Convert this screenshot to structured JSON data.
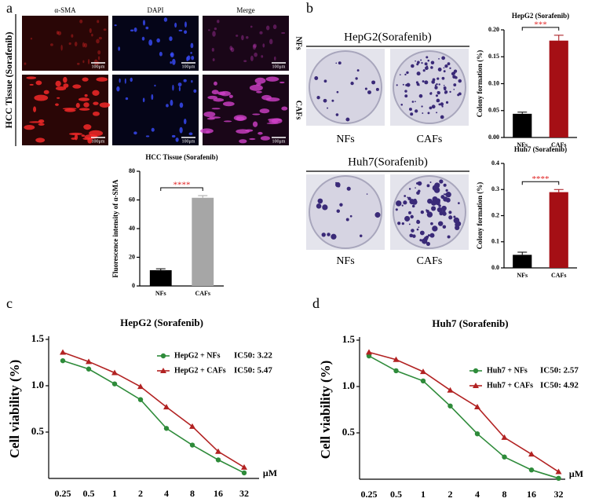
{
  "panel_labels": [
    "a",
    "b",
    "c",
    "d"
  ],
  "panel_a": {
    "row_group": "HCC Tissue (Sorafenib)",
    "columns": [
      "α-SMA",
      "DAPI",
      "Merge"
    ],
    "rows": [
      "NFs",
      "CAFs"
    ],
    "scale_bar": "100μm"
  },
  "panel_b": {
    "groups": [
      {
        "title": "HepG2(Sorafenib)",
        "labels": [
          "NFs",
          "CAFs"
        ]
      },
      {
        "title": "Huh7(Sorafenib)",
        "labels": [
          "NFs",
          "CAFs"
        ]
      }
    ]
  },
  "chart_data": [
    {
      "type": "bar",
      "title": "HCC Tissue (Sorafenib)",
      "ylabel": "Fluorescence intensity of α-SMA",
      "categories": [
        "NFs",
        "CAFs"
      ],
      "values": [
        11,
        61.5
      ],
      "errors": [
        1,
        1.5
      ],
      "colors": [
        "#000000",
        "#a6a6a6"
      ],
      "ylim": [
        0,
        80
      ],
      "yticks": [
        0,
        20,
        40,
        60,
        80
      ],
      "significance": "****"
    },
    {
      "type": "bar",
      "title": "HepG2 (Sorafenib)",
      "ylabel": "Colony formation (%)",
      "categories": [
        "NFs",
        "CAFs"
      ],
      "values": [
        0.044,
        0.18
      ],
      "errors": [
        0.003,
        0.01
      ],
      "colors": [
        "#000000",
        "#a50f15"
      ],
      "ylim": [
        0,
        0.2
      ],
      "yticks": [
        {
          "value": 0,
          "label": "0.00"
        },
        {
          "value": 0.05,
          "label": "0.05"
        },
        {
          "value": 0.1,
          "label": "0.10"
        },
        {
          "value": 0.15,
          "label": "0.15"
        },
        {
          "value": 0.2,
          "label": "0.20"
        }
      ],
      "significance": "***"
    },
    {
      "type": "bar",
      "title": "Huh7 (Sorafenib)",
      "ylabel": "Colony formation (%)",
      "categories": [
        "NFs",
        "CAFs"
      ],
      "values": [
        0.05,
        0.29
      ],
      "errors": [
        0.01,
        0.01
      ],
      "colors": [
        "#000000",
        "#a50f15"
      ],
      "ylim": [
        0,
        0.4
      ],
      "yticks": [
        {
          "value": 0,
          "label": "0.0"
        },
        0.1,
        0.2,
        0.3,
        0.4
      ],
      "significance": "****"
    },
    {
      "type": "line",
      "title": "HepG2 (Sorafenib)",
      "ylabel": "Cell viability (%)",
      "x_unit": "μM",
      "categories": [
        "0.25",
        "0.5",
        "1",
        "2",
        "4",
        "8",
        "16",
        "32"
      ],
      "ylim": [
        0,
        1.5
      ],
      "yticks": [
        0.5,
        {
          "value": 1,
          "label": "1.0"
        },
        1.5
      ],
      "series": [
        {
          "name": "HepG2 + NFs",
          "annotation": "IC50: 3.22",
          "color": "#2e8b3a",
          "marker": "circle",
          "values": [
            1.27,
            1.18,
            1.02,
            0.85,
            0.54,
            0.36,
            0.2,
            0.06
          ]
        },
        {
          "name": "HepG2 + CAFs",
          "annotation": "IC50: 5.47",
          "color": "#b22222",
          "marker": "triangle",
          "values": [
            1.36,
            1.26,
            1.14,
            0.99,
            0.77,
            0.56,
            0.29,
            0.12
          ]
        }
      ]
    },
    {
      "type": "line",
      "title": "Huh7 (Sorafenib)",
      "ylabel": "Cell viability (%)",
      "x_unit": "μM",
      "categories": [
        "0.25",
        "0.5",
        "1",
        "2",
        "4",
        "8",
        "16",
        "32"
      ],
      "ylim": [
        0,
        1.5
      ],
      "yticks": [
        0.5,
        {
          "value": 1,
          "label": "1.0"
        },
        1.5
      ],
      "series": [
        {
          "name": "Huh7 + NFs",
          "annotation": "IC50: 2.57",
          "color": "#2e8b3a",
          "marker": "circle",
          "values": [
            1.33,
            1.17,
            1.06,
            0.79,
            0.49,
            0.24,
            0.1,
            0.01
          ]
        },
        {
          "name": "Huh7 + CAFs",
          "annotation": "IC50: 4.92",
          "color": "#b22222",
          "marker": "triangle",
          "values": [
            1.37,
            1.29,
            1.16,
            0.96,
            0.78,
            0.45,
            0.27,
            0.08
          ]
        }
      ]
    }
  ]
}
